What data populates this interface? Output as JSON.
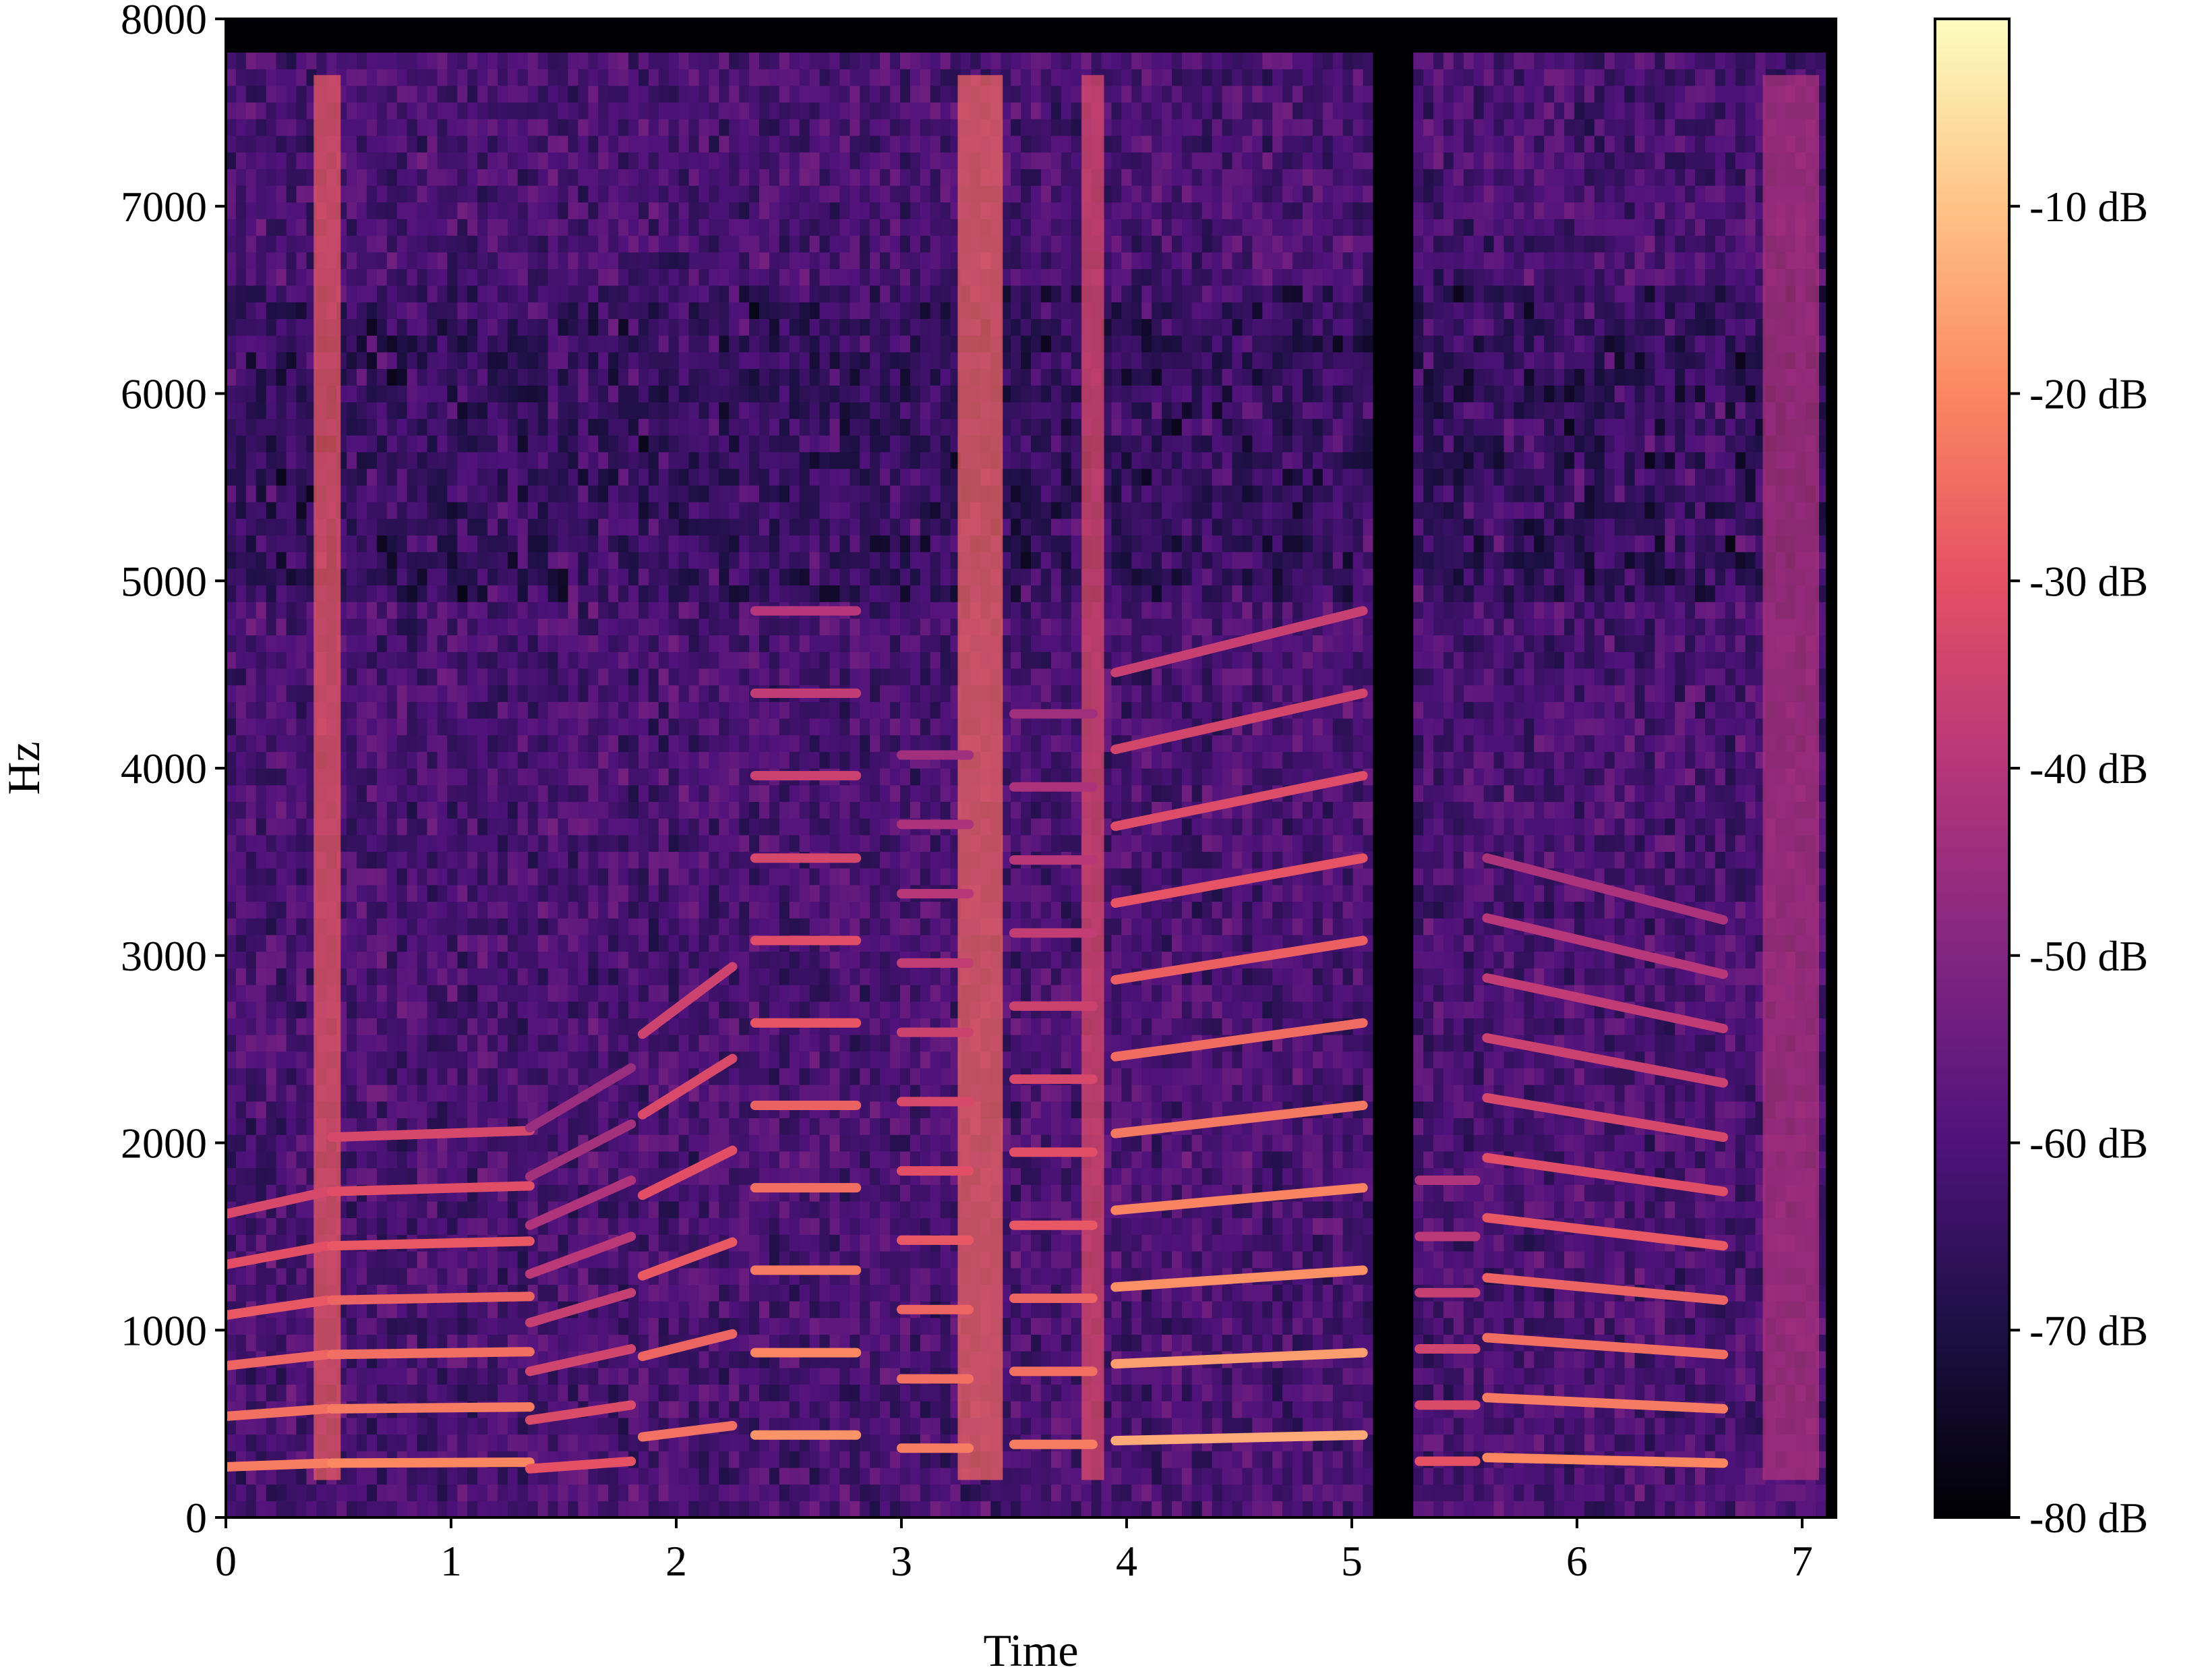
{
  "chart_data": {
    "type": "heatmap",
    "subtype": "spectrogram",
    "title": "",
    "xlabel": "Time",
    "ylabel": "Hz",
    "xlim": [
      0,
      7.15
    ],
    "ylim": [
      0,
      8000
    ],
    "x_ticks": [
      0,
      1,
      2,
      3,
      4,
      5,
      6,
      7
    ],
    "x_tick_labels": [
      "0",
      "1",
      "2",
      "3",
      "4",
      "5",
      "6",
      "7"
    ],
    "y_ticks": [
      0,
      1000,
      2000,
      3000,
      4000,
      5000,
      6000,
      7000,
      8000
    ],
    "y_tick_labels": [
      "0",
      "1000",
      "2000",
      "3000",
      "4000",
      "5000",
      "6000",
      "7000",
      "8000"
    ],
    "colormap": "magma",
    "colormap_stops": [
      "#000004",
      "#1c1044",
      "#4f127b",
      "#812581",
      "#b5367a",
      "#e55064",
      "#fb8761",
      "#fec287",
      "#fcfdbf"
    ],
    "colorbar": {
      "range_db": [
        -80,
        0
      ],
      "ticks": [
        -10,
        -20,
        -30,
        -40,
        -50,
        -60,
        -70,
        -80
      ],
      "tick_labels": [
        "-10 dB",
        "-20 dB",
        "-30 dB",
        "-40 dB",
        "-50 dB",
        "-60 dB",
        "-70 dB",
        "-80 dB"
      ]
    },
    "segments": [
      {
        "start": 0.0,
        "end": 0.45,
        "f0": [
          270,
          290
        ],
        "harmonics": 6,
        "level_db": -22
      },
      {
        "start": 0.47,
        "end": 1.35,
        "f0": [
          290,
          295
        ],
        "harmonics": 7,
        "level_db": -20
      },
      {
        "start": 1.35,
        "end": 1.8,
        "f0": [
          260,
          300
        ],
        "harmonics": 8,
        "level_db": -30
      },
      {
        "start": 1.85,
        "end": 2.25,
        "f0": [
          430,
          490
        ],
        "harmonics": 6,
        "level_db": -24
      },
      {
        "start": 2.35,
        "end": 2.8,
        "f0": [
          440,
          440
        ],
        "harmonics": 11,
        "level_db": -18
      },
      {
        "start": 3.0,
        "end": 3.3,
        "f0": [
          370,
          370
        ],
        "harmonics": 11,
        "level_db": -22
      },
      {
        "start": 3.5,
        "end": 3.85,
        "f0": [
          390,
          390
        ],
        "harmonics": 11,
        "level_db": -22
      },
      {
        "start": 3.95,
        "end": 5.05,
        "f0": [
          410,
          440
        ],
        "harmonics": 11,
        "level_db": -14
      },
      {
        "start": 5.3,
        "end": 5.55,
        "f0": [
          300,
          300
        ],
        "harmonics": 6,
        "level_db": -30
      },
      {
        "start": 5.6,
        "end": 6.65,
        "f0": [
          320,
          290
        ],
        "harmonics": 11,
        "level_db": -20
      }
    ],
    "broadband_events": [
      {
        "time": 0.45,
        "width": 0.12,
        "level_db": -28
      },
      {
        "time": 3.35,
        "width": 0.2,
        "level_db": -26
      },
      {
        "time": 3.85,
        "width": 0.1,
        "level_db": -32
      },
      {
        "time": 6.95,
        "width": 0.25,
        "level_db": -42
      }
    ],
    "silence_gaps": [
      {
        "start": 5.1,
        "end": 5.28
      }
    ]
  }
}
